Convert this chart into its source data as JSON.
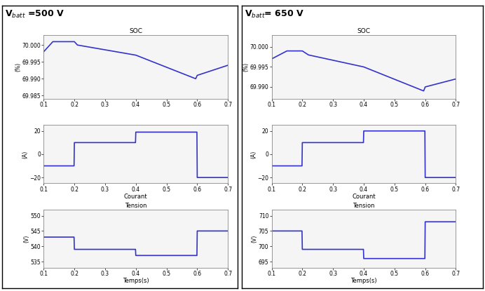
{
  "line_color": "#3333cc",
  "line_width": 1.2,
  "background_color": "#ffffff",
  "panel_bg": "#f5f5f5",
  "xlim": [
    0.1,
    0.7
  ],
  "xticks": [
    0.1,
    0.2,
    0.3,
    0.4,
    0.5,
    0.6,
    0.7
  ],
  "soc1_ylim": [
    69.984,
    70.003
  ],
  "soc1_yticks": [
    69.985,
    69.99,
    69.995,
    70.0
  ],
  "soc1_ylabel": "(%)",
  "soc1_title": "SOC",
  "soc1_x": [
    0.1,
    0.13,
    0.2,
    0.21,
    0.4,
    0.595,
    0.6,
    0.7
  ],
  "soc1_y": [
    69.998,
    70.001,
    70.001,
    70.0,
    69.997,
    69.99,
    69.991,
    69.994
  ],
  "cur1_ylim": [
    -25,
    25
  ],
  "cur1_yticks": [
    -20,
    0,
    20
  ],
  "cur1_ylabel": "(A)",
  "cur1_xlabel": "Courant",
  "cur1_x": [
    0.1,
    0.199,
    0.2,
    0.399,
    0.4,
    0.599,
    0.6,
    0.7
  ],
  "cur1_y": [
    -10,
    -10,
    10,
    10,
    19,
    19,
    -20,
    -20
  ],
  "ten1_ylim": [
    533,
    552
  ],
  "ten1_yticks": [
    535,
    540,
    545,
    550
  ],
  "ten1_ylabel": "(V)",
  "ten1_xlabel": "Tension",
  "ten1_bottom_xlabel": "Temps(s)",
  "ten1_x": [
    0.1,
    0.199,
    0.2,
    0.399,
    0.4,
    0.599,
    0.6,
    0.7
  ],
  "ten1_y": [
    543,
    543,
    539,
    539,
    537,
    537,
    545,
    545
  ],
  "soc2_ylim": [
    69.987,
    70.003
  ],
  "soc2_yticks": [
    69.99,
    69.995,
    70.0
  ],
  "soc2_ylabel": "(%)",
  "soc2_title": "SOC",
  "soc2_x": [
    0.1,
    0.15,
    0.2,
    0.22,
    0.4,
    0.595,
    0.6,
    0.7
  ],
  "soc2_y": [
    69.997,
    69.999,
    69.999,
    69.998,
    69.995,
    69.989,
    69.99,
    69.992
  ],
  "cur2_ylim": [
    -25,
    25
  ],
  "cur2_yticks": [
    -20,
    0,
    20
  ],
  "cur2_ylabel": "(A)",
  "cur2_xlabel": "Courant",
  "cur2_x": [
    0.1,
    0.199,
    0.2,
    0.399,
    0.4,
    0.599,
    0.6,
    0.7
  ],
  "cur2_y": [
    -10,
    -10,
    10,
    10,
    20,
    20,
    -20,
    -20
  ],
  "ten2_ylim": [
    693,
    712
  ],
  "ten2_yticks": [
    695,
    700,
    705,
    710
  ],
  "ten2_ylabel": "(V)",
  "ten2_xlabel": "Tension",
  "ten2_bottom_xlabel": "Temps(s)",
  "ten2_x": [
    0.1,
    0.199,
    0.2,
    0.399,
    0.4,
    0.599,
    0.6,
    0.7
  ],
  "ten2_y": [
    705,
    705,
    699,
    699,
    696,
    696,
    708,
    708
  ],
  "title_left": "V$_{batt}$ =500 V",
  "title_right": "V$_{batt}$= 650 V"
}
